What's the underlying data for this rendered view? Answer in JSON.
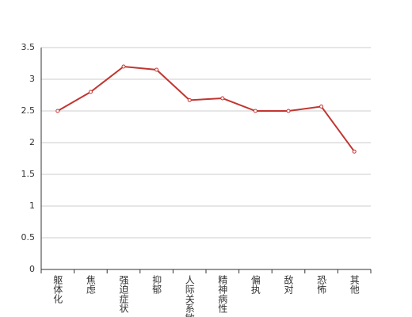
{
  "chart_data": {
    "type": "line",
    "categories": [
      "躯体化",
      "焦虑",
      "强迫症状",
      "抑郁",
      "人际关系敏感",
      "精神病性",
      "偏执",
      "敌对",
      "恐怖",
      "其他"
    ],
    "series": [
      {
        "color": "#c23531",
        "values": [
          2.5,
          2.8,
          3.2,
          3.15,
          2.67,
          2.7,
          2.5,
          2.5,
          2.57,
          1.86
        ]
      }
    ],
    "ylim": [
      0,
      3.5
    ],
    "yticks": [
      0,
      0.5,
      1,
      1.5,
      2,
      2.5,
      3,
      3.5
    ],
    "grid": true
  }
}
